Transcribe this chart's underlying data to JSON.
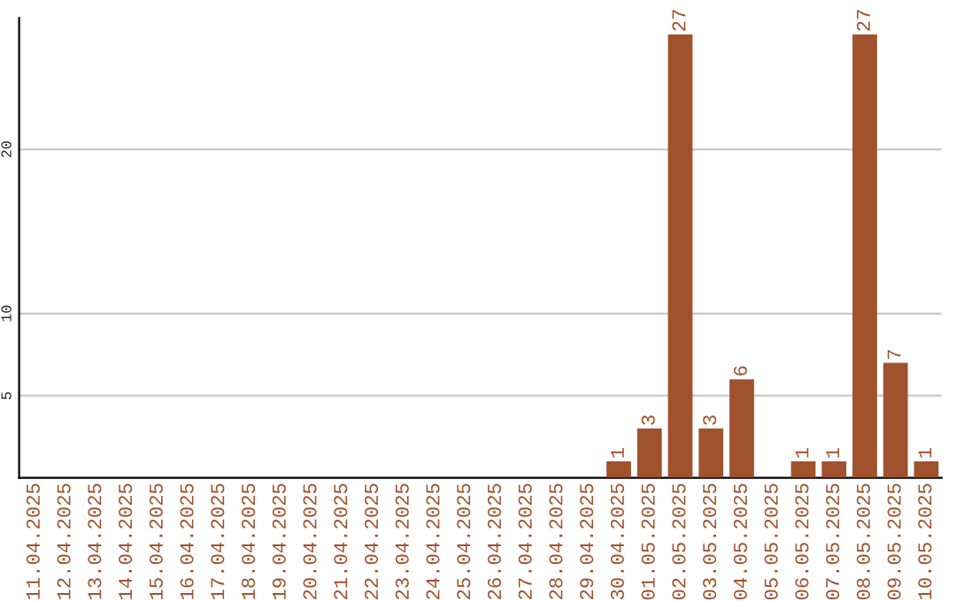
{
  "chart_data": {
    "type": "bar",
    "categories": [
      "11.04.2025",
      "12.04.2025",
      "13.04.2025",
      "14.04.2025",
      "15.04.2025",
      "16.04.2025",
      "17.04.2025",
      "18.04.2025",
      "19.04.2025",
      "20.04.2025",
      "21.04.2025",
      "22.04.2025",
      "23.04.2025",
      "24.04.2025",
      "25.04.2025",
      "26.04.2025",
      "27.04.2025",
      "28.04.2025",
      "29.04.2025",
      "30.04.2025",
      "01.05.2025",
      "02.05.2025",
      "03.05.2025",
      "04.05.2025",
      "05.05.2025",
      "06.05.2025",
      "07.05.2025",
      "08.05.2025",
      "09.05.2025",
      "10.05.2025"
    ],
    "values": [
      0,
      0,
      0,
      0,
      0,
      0,
      0,
      0,
      0,
      0,
      0,
      0,
      0,
      0,
      0,
      0,
      0,
      0,
      0,
      1,
      3,
      27,
      3,
      6,
      0,
      1,
      1,
      27,
      7,
      1
    ],
    "value_labels": [
      null,
      null,
      null,
      null,
      null,
      null,
      null,
      null,
      null,
      null,
      null,
      null,
      null,
      null,
      null,
      null,
      null,
      null,
      null,
      "1",
      "3",
      "27",
      "3",
      "6",
      null,
      "1",
      "1",
      "27",
      "7",
      "1"
    ],
    "color": "#a0522d",
    "ylim": [
      0,
      28
    ],
    "yticks": [
      5,
      10,
      20
    ],
    "grid": "y",
    "legend": false
  }
}
